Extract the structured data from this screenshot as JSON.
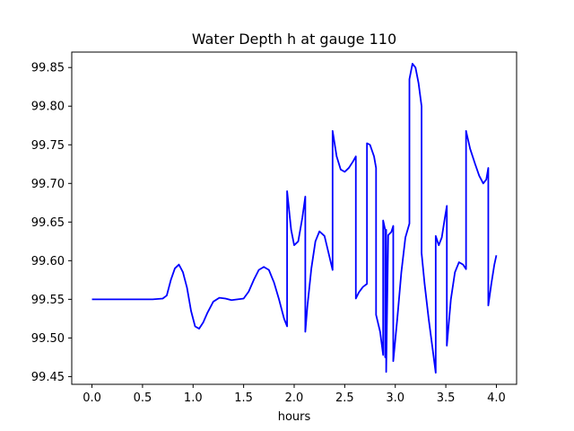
{
  "chart_data": {
    "type": "line",
    "title": "Water Depth h at gauge 110",
    "xlabel": "hours",
    "ylabel": "",
    "xlim": [
      -0.2,
      4.2
    ],
    "ylim": [
      99.44,
      99.87
    ],
    "xticks": [
      0.0,
      0.5,
      1.0,
      1.5,
      2.0,
      2.5,
      3.0,
      3.5,
      4.0
    ],
    "xtick_labels": [
      "0.0",
      "0.5",
      "1.0",
      "1.5",
      "2.0",
      "2.5",
      "3.0",
      "3.5",
      "4.0"
    ],
    "yticks": [
      99.45,
      99.5,
      99.55,
      99.6,
      99.65,
      99.7,
      99.75,
      99.8,
      99.85
    ],
    "ytick_labels": [
      "99.45",
      "99.50",
      "99.55",
      "99.60",
      "99.65",
      "99.70",
      "99.75",
      "99.80",
      "99.85"
    ],
    "grid": false,
    "line_color": "#0000ff",
    "series": [
      {
        "x": [
          0.0,
          0.3,
          0.6,
          0.7,
          0.74,
          0.78,
          0.82,
          0.86,
          0.9,
          0.94,
          0.98,
          1.02,
          1.06,
          1.1,
          1.14,
          1.2,
          1.26,
          1.32,
          1.38,
          1.44,
          1.5,
          1.55,
          1.6,
          1.65,
          1.7,
          1.75,
          1.8,
          1.85,
          1.9,
          1.93,
          1.93,
          1.97,
          2.0,
          2.04,
          2.08,
          2.11,
          2.11,
          2.13,
          2.17,
          2.21,
          2.25,
          2.3,
          2.34,
          2.38,
          2.38,
          2.42,
          2.46,
          2.5,
          2.54,
          2.58,
          2.61,
          2.61,
          2.64,
          2.68,
          2.72,
          2.72,
          2.75,
          2.79,
          2.81,
          2.81,
          2.85,
          2.88,
          2.88,
          2.9,
          2.9,
          2.91,
          2.91,
          2.93,
          2.96,
          2.98,
          2.98,
          3.02,
          3.06,
          3.1,
          3.14,
          3.14,
          3.17,
          3.2,
          3.23,
          3.26,
          3.26,
          3.29,
          3.33,
          3.37,
          3.4,
          3.4,
          3.43,
          3.46,
          3.49,
          3.51,
          3.51,
          3.55,
          3.59,
          3.63,
          3.67,
          3.7,
          3.7,
          3.74,
          3.79,
          3.83,
          3.87,
          3.9,
          3.92,
          3.92,
          3.95,
          3.98,
          4.0
        ],
        "y": [
          99.55,
          99.55,
          99.55,
          99.551,
          99.555,
          99.575,
          99.59,
          99.595,
          99.585,
          99.565,
          99.535,
          99.515,
          99.512,
          99.52,
          99.532,
          99.547,
          99.552,
          99.551,
          99.549,
          99.55,
          99.551,
          99.56,
          99.575,
          99.588,
          99.592,
          99.588,
          99.572,
          99.55,
          99.525,
          99.515,
          99.69,
          99.64,
          99.62,
          99.625,
          99.655,
          99.683,
          99.508,
          99.54,
          99.59,
          99.625,
          99.638,
          99.632,
          99.61,
          99.588,
          99.768,
          99.735,
          99.718,
          99.715,
          99.72,
          99.728,
          99.735,
          99.551,
          99.559,
          99.566,
          99.57,
          99.752,
          99.75,
          99.735,
          99.72,
          99.53,
          99.508,
          99.478,
          99.652,
          99.64,
          99.475,
          99.64,
          99.456,
          99.633,
          99.637,
          99.645,
          99.47,
          99.525,
          99.585,
          99.63,
          99.648,
          99.835,
          99.855,
          99.85,
          99.83,
          99.8,
          99.61,
          99.57,
          99.525,
          99.485,
          99.455,
          99.632,
          99.62,
          99.63,
          99.655,
          99.671,
          99.49,
          99.55,
          99.585,
          99.598,
          99.595,
          99.589,
          99.768,
          99.745,
          99.725,
          99.71,
          99.7,
          99.705,
          99.72,
          99.542,
          99.57,
          99.595,
          99.607
        ]
      }
    ]
  }
}
